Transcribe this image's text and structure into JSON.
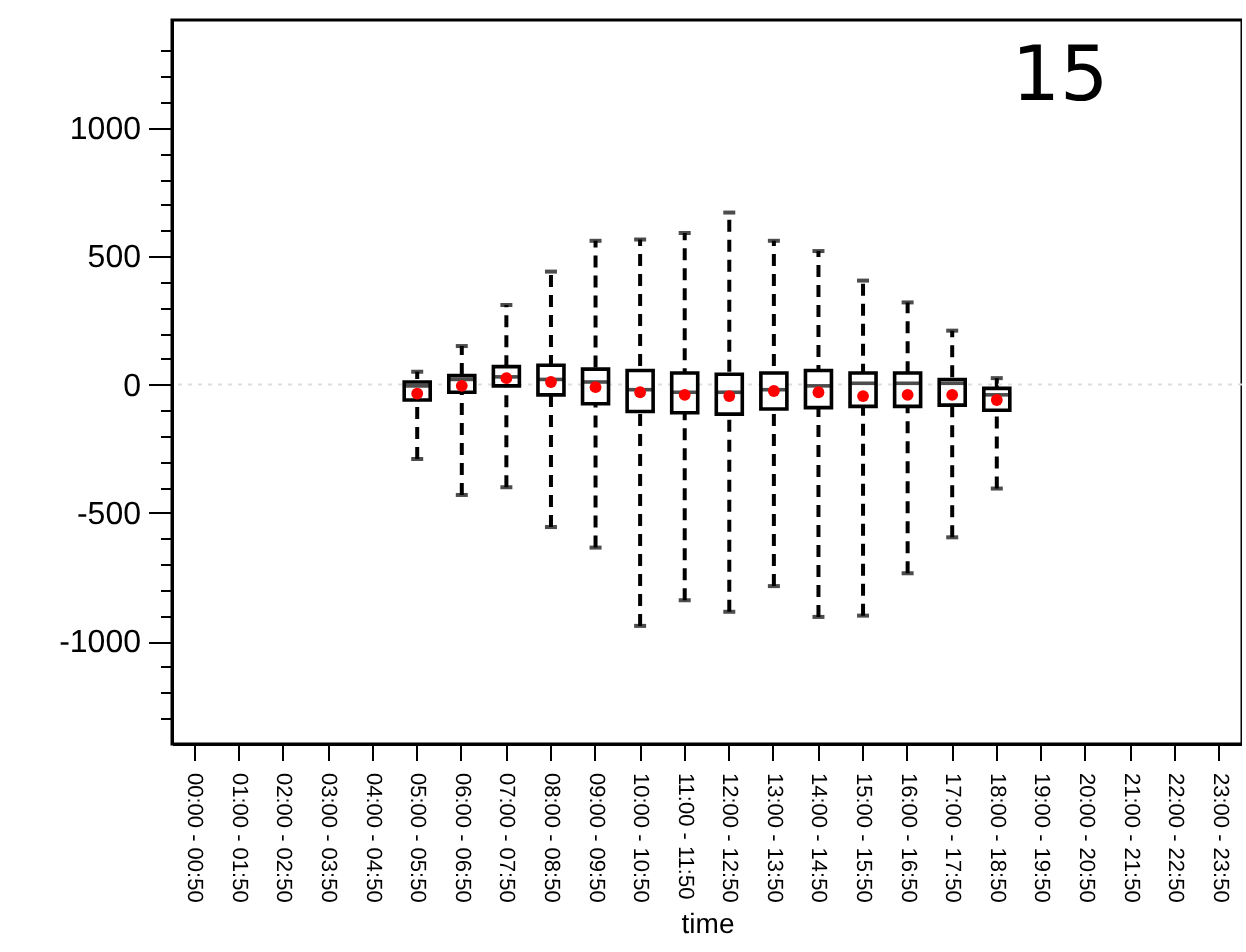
{
  "chart_data": {
    "type": "box",
    "xlabel": "time",
    "annotations": [
      "15"
    ],
    "categories": [
      "00:00 - 00:50",
      "01:00 - 01:50",
      "02:00 - 02:50",
      "03:00 - 03:50",
      "04:00 - 04:50",
      "05:00 - 05:50",
      "06:00 - 06:50",
      "07:00 - 07:50",
      "08:00 - 08:50",
      "09:00 - 09:50",
      "10:00 - 10:50",
      "11:00 - 11:50",
      "12:00 - 12:50",
      "13:00 - 13:50",
      "14:00 - 14:50",
      "15:00 - 15:50",
      "16:00 - 16:50",
      "17:00 - 17:50",
      "18:00 - 18:50",
      "19:00 - 19:50",
      "20:00 - 20:50",
      "21:00 - 21:50",
      "22:00 - 22:50",
      "23:00 - 23:50"
    ],
    "series": [
      {
        "color": "#000000",
        "boxes": [
          null,
          null,
          null,
          null,
          null,
          {
            "low": -290,
            "q1": -60,
            "median": -5,
            "q3": 10,
            "high": 50,
            "mean": -35
          },
          {
            "low": -430,
            "q1": -30,
            "median": 20,
            "q3": 35,
            "high": 150,
            "mean": -5
          },
          {
            "low": -400,
            "q1": -5,
            "median": 30,
            "q3": 70,
            "high": 310,
            "mean": 25
          },
          {
            "low": -555,
            "q1": -40,
            "median": 20,
            "q3": 75,
            "high": 440,
            "mean": 10
          },
          {
            "low": -635,
            "q1": -75,
            "median": 10,
            "q3": 60,
            "high": 560,
            "mean": -10
          },
          {
            "low": -940,
            "q1": -105,
            "median": -20,
            "q3": 55,
            "high": 565,
            "mean": -30
          },
          {
            "low": -840,
            "q1": -110,
            "median": -30,
            "q3": 45,
            "high": 590,
            "mean": -40
          },
          {
            "low": -885,
            "q1": -115,
            "median": -30,
            "q3": 40,
            "high": 670,
            "mean": -45
          },
          {
            "low": -785,
            "q1": -95,
            "median": -20,
            "q3": 45,
            "high": 560,
            "mean": -25
          },
          {
            "low": -905,
            "q1": -90,
            "median": -5,
            "q3": 55,
            "high": 520,
            "mean": -30
          },
          {
            "low": -900,
            "q1": -85,
            "median": 5,
            "q3": 45,
            "high": 405,
            "mean": -45
          },
          {
            "low": -735,
            "q1": -85,
            "median": 5,
            "q3": 45,
            "high": 320,
            "mean": -40
          },
          {
            "low": -595,
            "q1": -80,
            "median": 5,
            "q3": 20,
            "high": 210,
            "mean": -40
          },
          {
            "low": -405,
            "q1": -100,
            "median": -40,
            "q3": -15,
            "high": 25,
            "mean": -60
          },
          null,
          null,
          null,
          null,
          null
        ]
      }
    ],
    "ylim": [
      -1400,
      1420
    ],
    "yticks": [
      {
        "value": -1300,
        "label": null
      },
      {
        "value": -1200,
        "label": null
      },
      {
        "value": -1100,
        "label": null
      },
      -1000,
      {
        "value": -900,
        "label": null
      },
      {
        "value": -800,
        "label": null
      },
      {
        "value": -700,
        "label": null
      },
      {
        "value": -600,
        "label": null
      },
      -500,
      {
        "value": -400,
        "label": null
      },
      {
        "value": -300,
        "label": null
      },
      {
        "value": -200,
        "label": null
      },
      {
        "value": -100,
        "label": null
      },
      0,
      {
        "value": 100,
        "label": null
      },
      {
        "value": 200,
        "label": null
      },
      {
        "value": 300,
        "label": null
      },
      {
        "value": 400,
        "label": null
      },
      500,
      {
        "value": 600,
        "label": null
      },
      {
        "value": 700,
        "label": null
      },
      {
        "value": 800,
        "label": null
      },
      {
        "value": 900,
        "label": null
      },
      1000,
      {
        "value": 1100,
        "label": null
      },
      {
        "value": 1200,
        "label": null
      },
      {
        "value": 1300,
        "label": null
      }
    ],
    "ref_lines": [
      {
        "axis": "y",
        "value": 0,
        "color": "#dddddd",
        "line_style": "dotted"
      }
    ],
    "marker": "circle"
  }
}
